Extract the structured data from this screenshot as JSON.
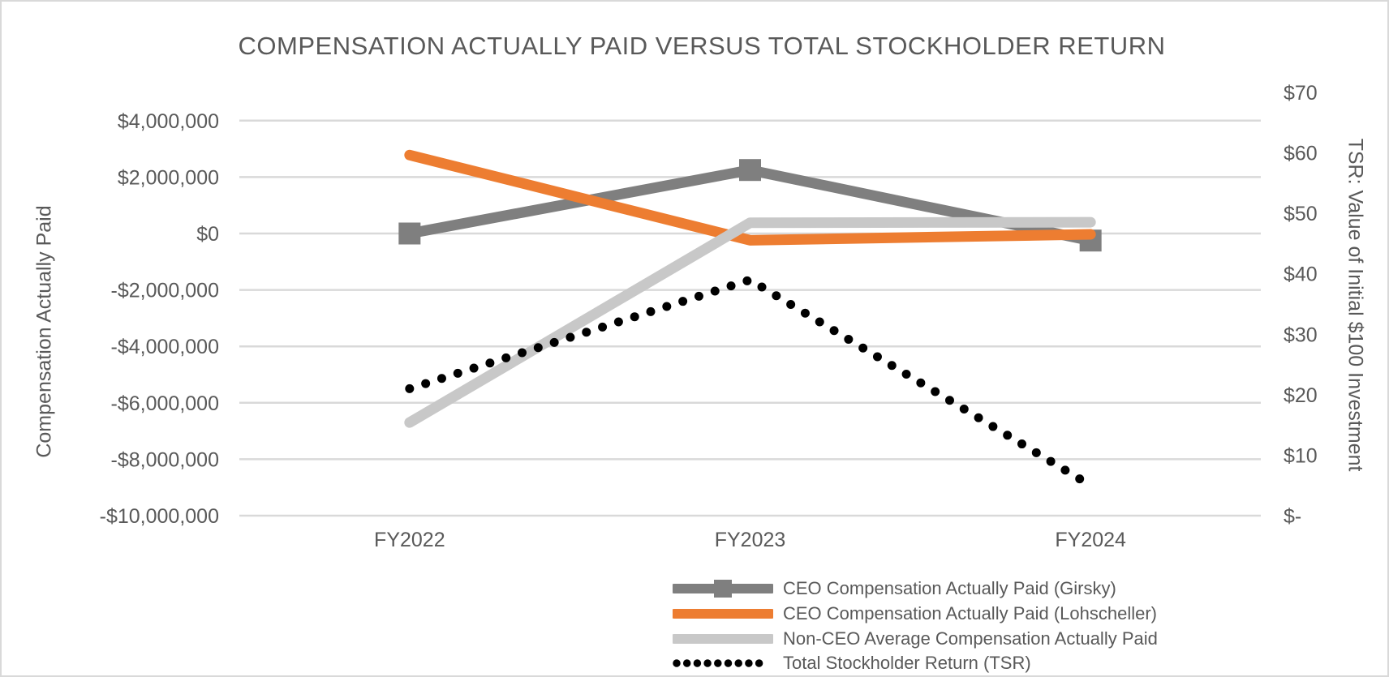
{
  "chart_data": {
    "type": "line",
    "title": "COMPENSATION ACTUALLY PAID VERSUS TOTAL STOCKHOLDER RETURN",
    "categories": [
      "FY2022",
      "FY2023",
      "FY2024"
    ],
    "grid": true,
    "legend_position": "bottom",
    "y_left": {
      "title": "Compensation Actually Paid",
      "tick_labels": [
        "$4,000,000",
        "$2,000,000",
        "$0",
        "-$2,000,000",
        "-$4,000,000",
        "-$6,000,000",
        "-$8,000,000",
        "-$10,000,000"
      ],
      "tick_values": [
        4000000,
        2000000,
        0,
        -2000000,
        -4000000,
        -6000000,
        -8000000,
        -10000000
      ],
      "range": [
        -10000000,
        5000000
      ]
    },
    "y_right": {
      "title": "TSR: Value of Initial $100 Investment",
      "tick_labels": [
        "$70",
        "$60",
        "$50",
        "$40",
        "$30",
        "$20",
        "$10",
        "$-"
      ],
      "tick_values": [
        70,
        60,
        50,
        40,
        30,
        20,
        10,
        0
      ],
      "range": [
        0,
        70
      ]
    },
    "series": [
      {
        "name": "CEO Compensation Actually Paid (Girsky)",
        "axis": "left",
        "color": "#7F7F7F",
        "line_style": "solid",
        "marker": "square",
        "values": [
          0,
          2250000,
          -250000
        ]
      },
      {
        "name": "CEO Compensation Actually Paid (Lohscheller)",
        "axis": "left",
        "color": "#ED7D31",
        "line_style": "solid",
        "marker": "none",
        "values": [
          2780000,
          -240000,
          -30000
        ]
      },
      {
        "name": "Non-CEO Average Compensation Actually Paid",
        "axis": "left",
        "color": "#C8C8C8",
        "line_style": "solid",
        "marker": "none",
        "values": [
          -6700000,
          380000,
          400000
        ]
      },
      {
        "name": "Total Stockholder Return (TSR)",
        "axis": "right",
        "color": "#000000",
        "line_style": "dotted",
        "marker": "none",
        "values": [
          21,
          39,
          5
        ]
      }
    ]
  },
  "colors": {
    "text": "#595959",
    "gridline": "#D9D9D9",
    "background": "#FFFFFF",
    "border": "#D9D9D9"
  }
}
